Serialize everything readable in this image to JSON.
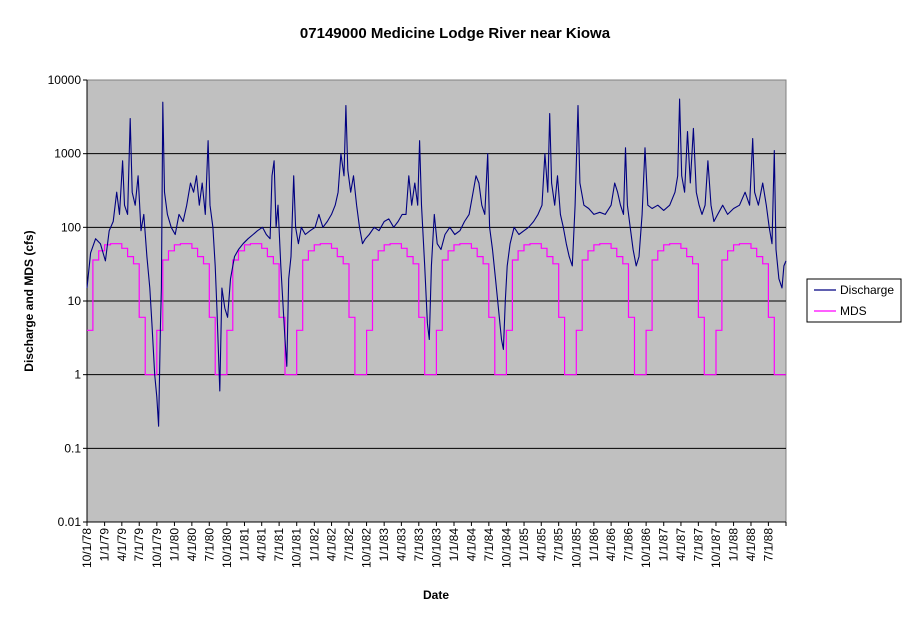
{
  "chart_data": {
    "type": "line",
    "title": "07149000 Medicine Lodge River near Kiowa",
    "xlabel": "Date",
    "ylabel": "Discharge and MDS (cfs)",
    "y_scale": "log",
    "ylim": [
      0.01,
      10000
    ],
    "y_ticks": [
      "0.01",
      "0.1",
      "1",
      "10",
      "100",
      "1000",
      "10000"
    ],
    "xlim": [
      "1978-10-01",
      "1988-10-01"
    ],
    "x_tick_labels": [
      "10/1/78",
      "1/1/79",
      "4/1/79",
      "7/1/79",
      "10/1/79",
      "1/1/80",
      "4/1/80",
      "7/1/80",
      "10/1/80",
      "1/1/81",
      "4/1/81",
      "7/1/81",
      "10/1/81",
      "1/1/82",
      "4/1/82",
      "7/1/82",
      "10/1/82",
      "1/1/83",
      "4/1/83",
      "7/1/83",
      "10/1/83",
      "1/1/84",
      "4/1/84",
      "7/1/84",
      "10/1/84",
      "1/1/85",
      "4/1/85",
      "7/1/85",
      "10/1/85",
      "1/1/86",
      "4/1/86",
      "7/1/86",
      "10/1/86",
      "1/1/87",
      "4/1/87",
      "7/1/87",
      "10/1/87",
      "1/1/88",
      "4/1/88",
      "7/1/88"
    ],
    "grid": "horizontal major gridlines",
    "legend_position": "right",
    "plot_background": "#c0c0c0",
    "series": [
      {
        "name": "Discharge",
        "color": "#000080",
        "points": [
          [
            "1978-10-01",
            15
          ],
          [
            "1978-10-20",
            45
          ],
          [
            "1978-11-15",
            70
          ],
          [
            "1978-12-10",
            60
          ],
          [
            "1979-01-05",
            35
          ],
          [
            "1979-01-25",
            90
          ],
          [
            "1979-02-15",
            120
          ],
          [
            "1979-03-05",
            300
          ],
          [
            "1979-03-20",
            150
          ],
          [
            "1979-04-05",
            800
          ],
          [
            "1979-04-15",
            200
          ],
          [
            "1979-05-01",
            150
          ],
          [
            "1979-05-15",
            3000
          ],
          [
            "1979-05-25",
            300
          ],
          [
            "1979-06-10",
            200
          ],
          [
            "1979-06-25",
            500
          ],
          [
            "1979-07-10",
            90
          ],
          [
            "1979-07-25",
            150
          ],
          [
            "1979-08-10",
            40
          ],
          [
            "1979-08-25",
            15
          ],
          [
            "1979-09-05",
            5
          ],
          [
            "1979-09-20",
            1
          ],
          [
            "1979-10-01",
            0.5
          ],
          [
            "1979-10-10",
            0.2
          ],
          [
            "1979-10-20",
            5
          ],
          [
            "1979-10-25",
            15
          ],
          [
            "1979-11-01",
            5000
          ],
          [
            "1979-11-10",
            300
          ],
          [
            "1979-11-25",
            150
          ],
          [
            "1979-12-15",
            100
          ],
          [
            "1980-01-05",
            80
          ],
          [
            "1980-01-25",
            150
          ],
          [
            "1980-02-15",
            120
          ],
          [
            "1980-03-05",
            200
          ],
          [
            "1980-03-25",
            400
          ],
          [
            "1980-04-10",
            300
          ],
          [
            "1980-04-25",
            500
          ],
          [
            "1980-05-10",
            200
          ],
          [
            "1980-05-25",
            400
          ],
          [
            "1980-06-10",
            150
          ],
          [
            "1980-06-25",
            1500
          ],
          [
            "1980-07-05",
            200
          ],
          [
            "1980-07-20",
            100
          ],
          [
            "1980-08-01",
            30
          ],
          [
            "1980-08-10",
            8
          ],
          [
            "1980-08-25",
            0.6
          ],
          [
            "1980-09-05",
            15
          ],
          [
            "1980-09-20",
            8
          ],
          [
            "1980-10-05",
            6
          ],
          [
            "1980-10-20",
            20
          ],
          [
            "1980-11-10",
            40
          ],
          [
            "1980-12-01",
            50
          ],
          [
            "1980-12-25",
            60
          ],
          [
            "1981-01-20",
            70
          ],
          [
            "1981-02-15",
            80
          ],
          [
            "1981-03-10",
            90
          ],
          [
            "1981-04-05",
            100
          ],
          [
            "1981-04-25",
            80
          ],
          [
            "1981-05-15",
            70
          ],
          [
            "1981-05-25",
            500
          ],
          [
            "1981-06-05",
            800
          ],
          [
            "1981-06-15",
            100
          ],
          [
            "1981-06-25",
            200
          ],
          [
            "1981-07-10",
            30
          ],
          [
            "1981-07-20",
            10
          ],
          [
            "1981-08-01",
            3
          ],
          [
            "1981-08-10",
            1.3
          ],
          [
            "1981-08-20",
            20
          ],
          [
            "1981-09-01",
            40
          ],
          [
            "1981-09-15",
            500
          ],
          [
            "1981-09-25",
            100
          ],
          [
            "1981-10-10",
            60
          ],
          [
            "1981-10-25",
            100
          ],
          [
            "1981-11-15",
            80
          ],
          [
            "1981-12-10",
            90
          ],
          [
            "1982-01-05",
            100
          ],
          [
            "1982-01-25",
            150
          ],
          [
            "1982-02-15",
            100
          ],
          [
            "1982-03-10",
            120
          ],
          [
            "1982-04-01",
            150
          ],
          [
            "1982-04-20",
            200
          ],
          [
            "1982-05-05",
            300
          ],
          [
            "1982-05-20",
            1000
          ],
          [
            "1982-06-05",
            500
          ],
          [
            "1982-06-15",
            4500
          ],
          [
            "1982-06-25",
            600
          ],
          [
            "1982-07-10",
            300
          ],
          [
            "1982-07-25",
            500
          ],
          [
            "1982-08-10",
            200
          ],
          [
            "1982-08-25",
            100
          ],
          [
            "1982-09-10",
            60
          ],
          [
            "1982-09-25",
            70
          ],
          [
            "1982-10-15",
            80
          ],
          [
            "1982-11-10",
            100
          ],
          [
            "1982-12-05",
            90
          ],
          [
            "1983-01-01",
            120
          ],
          [
            "1983-01-25",
            130
          ],
          [
            "1983-02-20",
            100
          ],
          [
            "1983-03-15",
            120
          ],
          [
            "1983-04-05",
            150
          ],
          [
            "1983-04-25",
            150
          ],
          [
            "1983-05-10",
            500
          ],
          [
            "1983-05-25",
            200
          ],
          [
            "1983-06-10",
            400
          ],
          [
            "1983-06-25",
            200
          ],
          [
            "1983-07-05",
            1500
          ],
          [
            "1983-07-15",
            200
          ],
          [
            "1983-08-01",
            30
          ],
          [
            "1983-08-15",
            5
          ],
          [
            "1983-08-25",
            3
          ],
          [
            "1983-09-05",
            30
          ],
          [
            "1983-09-20",
            150
          ],
          [
            "1983-10-05",
            60
          ],
          [
            "1983-10-25",
            50
          ],
          [
            "1983-11-15",
            80
          ],
          [
            "1983-12-10",
            100
          ],
          [
            "1984-01-05",
            80
          ],
          [
            "1984-02-01",
            90
          ],
          [
            "1984-02-25",
            120
          ],
          [
            "1984-03-20",
            150
          ],
          [
            "1984-04-10",
            300
          ],
          [
            "1984-04-25",
            500
          ],
          [
            "1984-05-10",
            400
          ],
          [
            "1984-05-25",
            200
          ],
          [
            "1984-06-10",
            150
          ],
          [
            "1984-06-25",
            1000
          ],
          [
            "1984-07-05",
            100
          ],
          [
            "1984-07-20",
            50
          ],
          [
            "1984-08-05",
            20
          ],
          [
            "1984-08-20",
            8
          ],
          [
            "1984-09-05",
            3
          ],
          [
            "1984-09-15",
            2.2
          ],
          [
            "1984-09-25",
            10
          ],
          [
            "1984-10-05",
            30
          ],
          [
            "1984-10-20",
            60
          ],
          [
            "1984-11-10",
            100
          ],
          [
            "1984-12-05",
            80
          ],
          [
            "1985-01-01",
            90
          ],
          [
            "1985-01-25",
            100
          ],
          [
            "1985-02-20",
            120
          ],
          [
            "1985-03-15",
            150
          ],
          [
            "1985-04-05",
            200
          ],
          [
            "1985-04-20",
            1000
          ],
          [
            "1985-05-05",
            300
          ],
          [
            "1985-05-15",
            3500
          ],
          [
            "1985-05-25",
            400
          ],
          [
            "1985-06-10",
            200
          ],
          [
            "1985-06-25",
            500
          ],
          [
            "1985-07-10",
            150
          ],
          [
            "1985-07-25",
            100
          ],
          [
            "1985-08-10",
            60
          ],
          [
            "1985-08-25",
            40
          ],
          [
            "1985-09-10",
            30
          ],
          [
            "1985-09-25",
            200
          ],
          [
            "1985-10-10",
            4500
          ],
          [
            "1985-10-20",
            400
          ],
          [
            "1985-11-10",
            200
          ],
          [
            "1985-12-05",
            180
          ],
          [
            "1986-01-01",
            150
          ],
          [
            "1986-02-01",
            160
          ],
          [
            "1986-03-01",
            150
          ],
          [
            "1986-04-01",
            200
          ],
          [
            "1986-04-20",
            400
          ],
          [
            "1986-05-05",
            300
          ],
          [
            "1986-05-20",
            200
          ],
          [
            "1986-06-05",
            150
          ],
          [
            "1986-06-15",
            1200
          ],
          [
            "1986-06-25",
            200
          ],
          [
            "1986-07-10",
            100
          ],
          [
            "1986-07-25",
            50
          ],
          [
            "1986-08-10",
            30
          ],
          [
            "1986-08-25",
            40
          ],
          [
            "1986-09-10",
            150
          ],
          [
            "1986-09-25",
            1200
          ],
          [
            "1986-10-10",
            200
          ],
          [
            "1986-11-01",
            180
          ],
          [
            "1986-12-01",
            200
          ],
          [
            "1987-01-01",
            170
          ],
          [
            "1987-02-01",
            200
          ],
          [
            "1987-03-01",
            300
          ],
          [
            "1987-03-15",
            500
          ],
          [
            "1987-03-25",
            5500
          ],
          [
            "1987-04-05",
            500
          ],
          [
            "1987-04-20",
            300
          ],
          [
            "1987-05-05",
            2000
          ],
          [
            "1987-05-20",
            400
          ],
          [
            "1987-06-05",
            2200
          ],
          [
            "1987-06-20",
            300
          ],
          [
            "1987-07-05",
            200
          ],
          [
            "1987-07-20",
            150
          ],
          [
            "1987-08-05",
            200
          ],
          [
            "1987-08-20",
            800
          ],
          [
            "1987-09-05",
            200
          ],
          [
            "1987-09-20",
            120
          ],
          [
            "1987-10-10",
            150
          ],
          [
            "1987-11-05",
            200
          ],
          [
            "1987-12-01",
            150
          ],
          [
            "1988-01-01",
            180
          ],
          [
            "1988-02-01",
            200
          ],
          [
            "1988-03-01",
            300
          ],
          [
            "1988-03-25",
            200
          ],
          [
            "1988-04-10",
            1600
          ],
          [
            "1988-04-20",
            300
          ],
          [
            "1988-05-10",
            200
          ],
          [
            "1988-06-01",
            400
          ],
          [
            "1988-06-20",
            200
          ],
          [
            "1988-07-05",
            100
          ],
          [
            "1988-07-20",
            60
          ],
          [
            "1988-08-01",
            1100
          ],
          [
            "1988-08-10",
            50
          ],
          [
            "1988-08-25",
            20
          ],
          [
            "1988-09-10",
            15
          ],
          [
            "1988-09-20",
            30
          ],
          [
            "1988-10-01",
            35
          ]
        ]
      },
      {
        "name": "MDS",
        "color": "#ff00ff",
        "monthly_values_oct_to_sep": [
          4,
          36,
          48,
          58,
          60,
          60,
          52,
          40,
          32,
          6,
          1,
          1
        ],
        "water_years": [
          1979,
          1980,
          1981,
          1982,
          1983,
          1984,
          1985,
          1986,
          1987,
          1988
        ]
      }
    ]
  }
}
